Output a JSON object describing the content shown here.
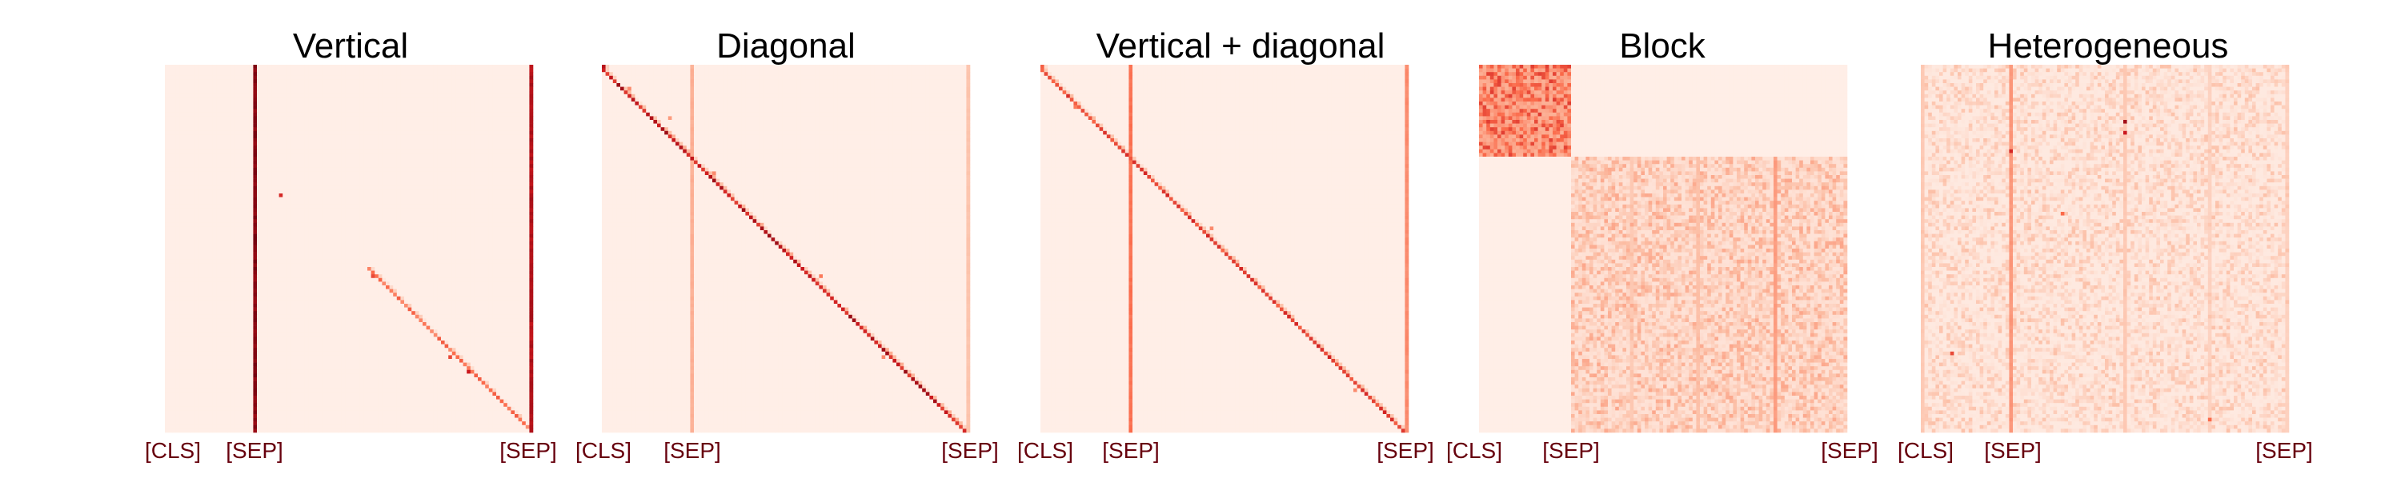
{
  "figure": {
    "panel_titles": [
      "Vertical",
      "Diagonal",
      "Vertical + diagonal",
      "Block",
      "Heterogeneous"
    ],
    "token_labels": {
      "cls": "[CLS]",
      "sep": "[SEP]"
    }
  },
  "chart_data": [
    {
      "type": "heatmap",
      "title": "Vertical",
      "tick_labels": [
        "[CLS]",
        "[SEP]",
        "[SEP]"
      ],
      "size": 100,
      "colormap": [
        "#fff5f0",
        "#fcbba1",
        "#fb6a4a",
        "#cb181d",
        "#67000d"
      ],
      "value_range": [
        0,
        1
      ],
      "background": 0.03,
      "vertical_stripes": [
        {
          "column": 24,
          "value": 0.97
        },
        {
          "column": 99,
          "value": 0.85
        }
      ],
      "diagonal": {
        "from_row": 55,
        "to_row": 99,
        "value": 0.55
      },
      "scattered": [
        {
          "row": 35,
          "col": 31,
          "value": 0.7
        },
        {
          "row": 57,
          "col": 56,
          "value": 0.6
        },
        {
          "row": 79,
          "col": 77,
          "value": 0.6
        },
        {
          "row": 83,
          "col": 82,
          "value": 0.75
        }
      ],
      "legend": "none",
      "grid": false
    },
    {
      "type": "heatmap",
      "title": "Diagonal",
      "tick_labels": [
        "[CLS]",
        "[SEP]",
        "[SEP]"
      ],
      "size": 100,
      "colormap": [
        "#fff5f0",
        "#fcbba1",
        "#fb6a4a",
        "#cb181d",
        "#67000d"
      ],
      "value_range": [
        0,
        1
      ],
      "background": 0.03,
      "vertical_stripes": [
        {
          "column": 24,
          "value": 0.3
        },
        {
          "column": 99,
          "value": 0.22
        }
      ],
      "diagonal": {
        "from_row": 0,
        "to_row": 99,
        "value": 0.88,
        "offset": -1
      },
      "scattered": [
        {
          "row": 6,
          "col": 7,
          "value": 0.4
        },
        {
          "row": 14,
          "col": 18,
          "value": 0.35
        },
        {
          "row": 29,
          "col": 30,
          "value": 0.4
        },
        {
          "row": 57,
          "col": 59,
          "value": 0.45
        },
        {
          "row": 79,
          "col": 76,
          "value": 0.4
        }
      ],
      "legend": "none",
      "grid": false
    },
    {
      "type": "heatmap",
      "title": "Vertical + diagonal",
      "tick_labels": [
        "[CLS]",
        "[SEP]",
        "[SEP]"
      ],
      "size": 100,
      "colormap": [
        "#fff5f0",
        "#fcbba1",
        "#fb6a4a",
        "#cb181d",
        "#67000d"
      ],
      "value_range": [
        0,
        1
      ],
      "background": 0.03,
      "vertical_stripes": [
        {
          "column": 24,
          "value": 0.5
        },
        {
          "column": 99,
          "value": 0.42
        }
      ],
      "diagonal": {
        "from_row": 0,
        "to_row": 99,
        "value": 0.72,
        "offset": -1
      },
      "scattered": [
        {
          "row": 11,
          "col": 9,
          "value": 0.45
        },
        {
          "row": 44,
          "col": 46,
          "value": 0.4
        },
        {
          "row": 88,
          "col": 85,
          "value": 0.4
        }
      ],
      "legend": "none",
      "grid": false
    },
    {
      "type": "heatmap",
      "title": "Block",
      "tick_labels": [
        "[CLS]",
        "[SEP]",
        "[SEP]"
      ],
      "size": 100,
      "colormap": [
        "#fff5f0",
        "#fcbba1",
        "#fb6a4a",
        "#cb181d",
        "#67000d"
      ],
      "value_range": [
        0,
        1
      ],
      "background": 0.03,
      "blocks": [
        {
          "rows": [
            0,
            24
          ],
          "cols": [
            0,
            24
          ],
          "value": 0.28,
          "noise": 0.4
        },
        {
          "rows": [
            25,
            99
          ],
          "cols": [
            25,
            99
          ],
          "value": 0.08,
          "noise": 0.26
        }
      ],
      "vertical_stripes": [
        {
          "column": 80,
          "from_row": 25,
          "value": 0.36
        },
        {
          "column": 59,
          "from_row": 25,
          "value": 0.24
        },
        {
          "column": 41,
          "from_row": 25,
          "value": 0.2
        }
      ],
      "legend": "none",
      "grid": false
    },
    {
      "type": "heatmap",
      "title": "Heterogeneous",
      "tick_labels": [
        "[CLS]",
        "[SEP]",
        "[SEP]"
      ],
      "size": 100,
      "colormap": [
        "#fff5f0",
        "#fcbba1",
        "#fb6a4a",
        "#cb181d",
        "#67000d"
      ],
      "value_range": [
        0,
        1
      ],
      "background": 0.05,
      "noise": 0.3,
      "vertical_stripes": [
        {
          "column": 24,
          "value": 0.38
        },
        {
          "column": 0,
          "value": 0.2
        },
        {
          "column": 99,
          "value": 0.16
        },
        {
          "column": 55,
          "value": 0.2
        },
        {
          "column": 78,
          "value": 0.16
        }
      ],
      "scattered": [
        {
          "row": 15,
          "col": 55,
          "value": 0.85
        },
        {
          "row": 18,
          "col": 55,
          "value": 0.75
        },
        {
          "row": 23,
          "col": 24,
          "value": 0.7
        },
        {
          "row": 78,
          "col": 8,
          "value": 0.6
        },
        {
          "row": 96,
          "col": 78,
          "value": 0.5
        },
        {
          "row": 40,
          "col": 38,
          "value": 0.5
        }
      ],
      "legend": "none",
      "grid": false
    }
  ]
}
